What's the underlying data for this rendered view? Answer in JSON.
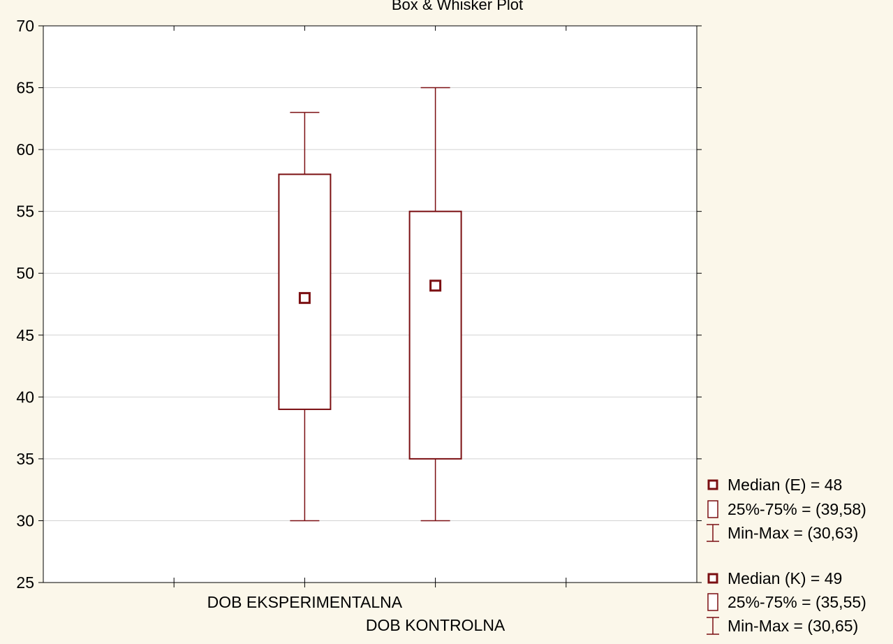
{
  "chart_data": {
    "type": "boxplot",
    "title": "Box & Whisker Plot",
    "xlabel": "",
    "ylabel": "",
    "ylim": [
      25,
      70
    ],
    "yticks": [
      25,
      30,
      35,
      40,
      45,
      50,
      55,
      60,
      65,
      70
    ],
    "grid": true,
    "legend_position": "bottom-right",
    "color": "#7b0f12",
    "categories": [
      "DOB EKSPERIMENTALNA",
      "DOB KONTROLNA"
    ],
    "series": [
      {
        "category": "DOB EKSPERIMENTALNA",
        "median": 48,
        "q1": 39,
        "q3": 58,
        "min": 30,
        "max": 63
      },
      {
        "category": "DOB KONTROLNA",
        "median": 49,
        "q1": 35,
        "q3": 55,
        "min": 30,
        "max": 65
      }
    ],
    "legend": [
      {
        "symbol": "median",
        "label": "Median (E) = 48"
      },
      {
        "symbol": "box",
        "label": "25%-75% = (39,58)"
      },
      {
        "symbol": "whisker",
        "label": "Min-Max = (30,63)"
      },
      {
        "symbol": "median",
        "label": "Median (K) = 49"
      },
      {
        "symbol": "box",
        "label": "25%-75% = (35,55)"
      },
      {
        "symbol": "whisker",
        "label": "Min-Max = (30,65)"
      }
    ]
  }
}
